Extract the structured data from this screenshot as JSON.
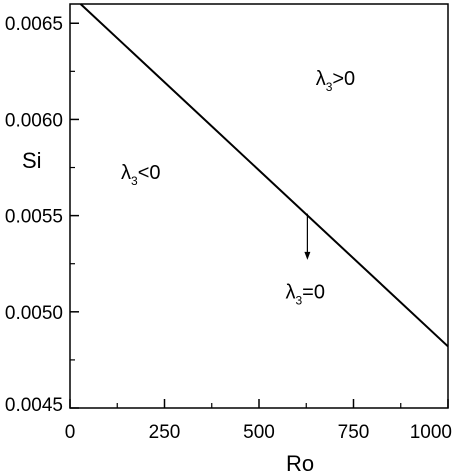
{
  "chart_data": {
    "type": "line",
    "xlabel": "Ro",
    "ylabel": "Si",
    "xlim": [
      0,
      1000
    ],
    "ylim": [
      0.0045,
      0.0066
    ],
    "x_ticks": [
      0,
      250,
      500,
      750,
      1000
    ],
    "x_tick_labels": [
      "0",
      "250",
      "500",
      "750",
      "1000"
    ],
    "y_ticks": [
      0.0045,
      0.005,
      0.0055,
      0.006,
      0.0065
    ],
    "y_tick_labels": [
      "0.0045",
      "0.0050",
      "0.0055",
      "0.0060",
      "0.0065"
    ],
    "grid": false,
    "series": [
      {
        "x": [
          28,
          1000
        ],
        "y": [
          0.0066,
          0.00482
        ]
      }
    ],
    "annotations": [
      {
        "text": "λ",
        "sub": "3",
        "rest": ">0",
        "x": 650,
        "y": 0.00618
      },
      {
        "text": "λ",
        "sub": "3",
        "rest": "<0",
        "x": 135,
        "y": 0.00569
      },
      {
        "text": "λ",
        "sub": "3",
        "rest": "=0",
        "x": 570,
        "y": 0.00507
      }
    ],
    "arrow": {
      "from": [
        628,
        0.00551
      ],
      "to": [
        628,
        0.00527
      ]
    }
  }
}
